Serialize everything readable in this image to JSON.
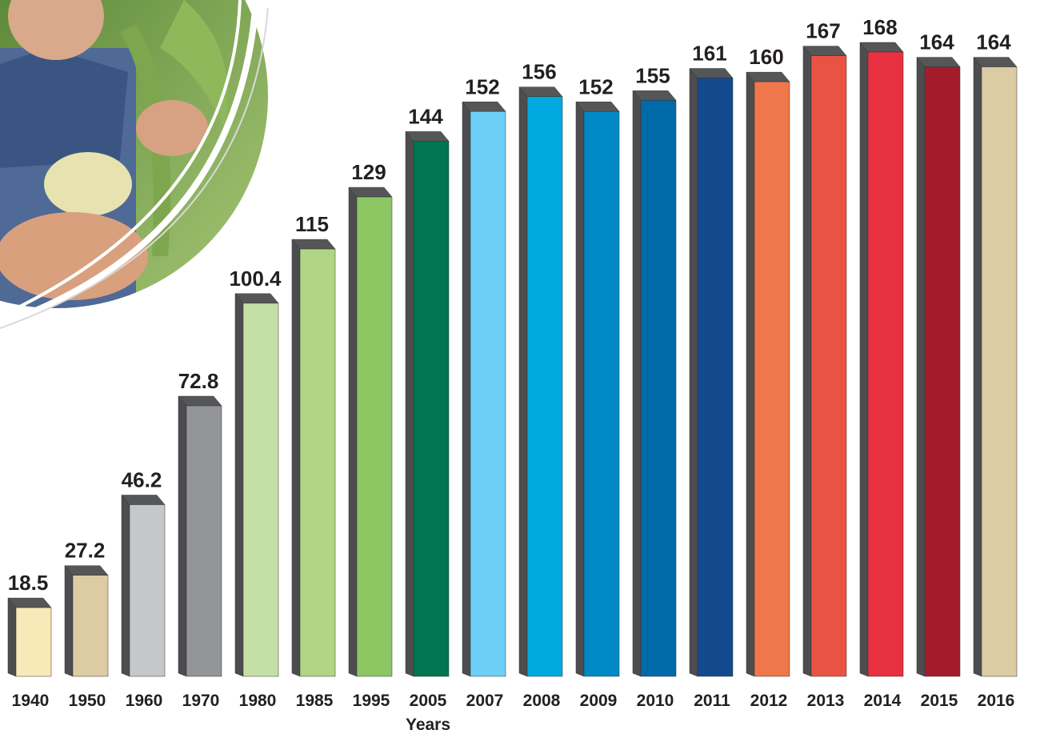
{
  "chart_data": {
    "type": "bar3d",
    "x_label": "Years",
    "categories": [
      "1940",
      "1950",
      "1960",
      "1970",
      "1980",
      "1985",
      "1995",
      "2005",
      "2007",
      "2008",
      "2009",
      "2010",
      "2011",
      "2012",
      "2013",
      "2014",
      "2015",
      "2016"
    ],
    "values": [
      18.5,
      27.2,
      46.2,
      72.8,
      100.4,
      115,
      129,
      144,
      152,
      156,
      152,
      155,
      161,
      160,
      167,
      168,
      164,
      164
    ],
    "colors": [
      "#f9e8b8",
      "#dccba3",
      "#c6c7c9",
      "#939598",
      "#c5e0a5",
      "#b0d584",
      "#8cc764",
      "#00754f",
      "#6ecff6",
      "#00a9df",
      "#008ac5",
      "#0069a8",
      "#134a8e",
      "#ef774a",
      "#ea5343",
      "#e83140",
      "#a41c2c",
      "#dccba3"
    ]
  }
}
